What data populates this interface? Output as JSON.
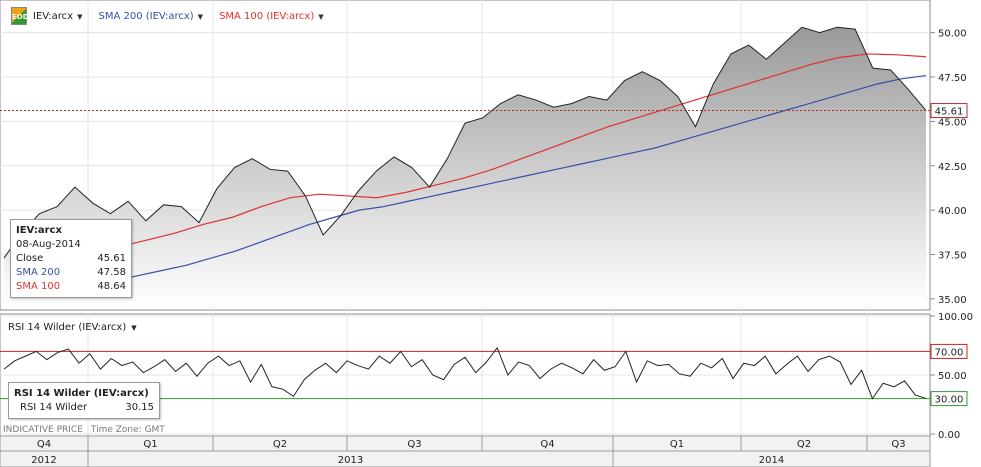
{
  "legend": {
    "symbol": "IEV:arcx",
    "sma200_label": "SMA 200 (IEV:arcx)",
    "sma100_label": "SMA 100 (IEV:arcx)",
    "price_color": "#222222",
    "sma200_color": "#3a4fa8",
    "sma100_color": "#e03030"
  },
  "price_info": {
    "title": "IEV:arcx",
    "date": "08-Aug-2014",
    "rows": [
      {
        "label": "Close",
        "value": "45.61"
      },
      {
        "label": "SMA 200",
        "value": "47.58"
      },
      {
        "label": "SMA 100",
        "value": "48.64"
      }
    ]
  },
  "rsi_panel": {
    "title": "RSI 14 Wilder (IEV:arcx)",
    "info_title": "RSI 14 Wilder (IEV:arcx)",
    "info_label": "RSI 14 Wilder",
    "info_value": "30.15",
    "overbought_color": "#cc2020",
    "oversold_color": "#2f9a2f"
  },
  "footer": {
    "indicative": "INDICATIVE PRICE",
    "timezone": "Time Zone: GMT"
  },
  "chart_data": [
    {
      "type": "area",
      "title": "IEV:arcx",
      "y_ticks": [
        "50.00",
        "47.50",
        "45.00",
        "42.50",
        "40.00",
        "37.50",
        "35.00"
      ],
      "ylim": [
        34.6,
        51.5
      ],
      "last_value_label": "45.61",
      "grid": true,
      "series": [
        {
          "name": "IEV:arcx",
          "values": [
            37.3,
            38.7,
            39.8,
            40.2,
            41.3,
            40.4,
            39.8,
            40.5,
            39.4,
            40.3,
            40.2,
            39.3,
            41.2,
            42.4,
            42.9,
            42.3,
            42.2,
            40.8,
            38.6,
            39.7,
            41.1,
            42.2,
            43.0,
            42.4,
            41.3,
            42.9,
            44.9,
            45.2,
            46.0,
            46.5,
            46.2,
            45.8,
            46.0,
            46.4,
            46.2,
            47.3,
            47.8,
            47.3,
            46.4,
            44.7,
            47.1,
            48.8,
            49.3,
            48.5,
            49.4,
            50.3,
            50.0,
            50.3,
            50.2,
            48.0,
            47.9,
            46.8,
            45.61
          ]
        },
        {
          "name": "SMA 200",
          "values": [
            35.8,
            36.0,
            36.3,
            36.6,
            36.9,
            37.3,
            37.7,
            38.2,
            38.7,
            39.2,
            39.6,
            40.0,
            40.2,
            40.5,
            40.8,
            41.1,
            41.4,
            41.7,
            42.0,
            42.3,
            42.6,
            42.9,
            43.2,
            43.5,
            43.9,
            44.3,
            44.7,
            45.1,
            45.5,
            45.9,
            46.3,
            46.7,
            47.1,
            47.4,
            47.58
          ]
        },
        {
          "name": "SMA 100",
          "values": [
            37.4,
            37.9,
            38.3,
            38.7,
            39.2,
            39.6,
            40.2,
            40.7,
            40.9,
            40.8,
            40.7,
            41.0,
            41.4,
            41.8,
            42.3,
            42.9,
            43.5,
            44.1,
            44.7,
            45.2,
            45.7,
            46.2,
            46.7,
            47.2,
            47.7,
            48.2,
            48.6,
            48.8,
            48.75,
            48.64
          ]
        }
      ]
    },
    {
      "type": "line",
      "title": "RSI 14 Wilder",
      "y_ticks": [
        "100.00",
        "70.00",
        "50.00",
        "30.00",
        "0.00"
      ],
      "ylim": [
        0,
        100
      ],
      "levels": [
        70,
        30
      ],
      "grid": true,
      "series": [
        {
          "name": "RSI 14 Wilder",
          "values": [
            55,
            62,
            66,
            70,
            63,
            69,
            72,
            60,
            68,
            55,
            64,
            58,
            61,
            52,
            57,
            63,
            53,
            60,
            49,
            60,
            66,
            58,
            62,
            44,
            59,
            40,
            38,
            32,
            46,
            54,
            60,
            52,
            62,
            58,
            55,
            66,
            60,
            70,
            57,
            63,
            50,
            46,
            59,
            65,
            52,
            61,
            73,
            50,
            61,
            58,
            47,
            55,
            60,
            56,
            51,
            63,
            54,
            57,
            70,
            44,
            62,
            58,
            59,
            51,
            49,
            60,
            56,
            64,
            47,
            60,
            58,
            66,
            51,
            59,
            66,
            53,
            63,
            66,
            61,
            42,
            54,
            30,
            43,
            40,
            45,
            33,
            30.15
          ]
        }
      ]
    }
  ],
  "x_axis": {
    "quarters": [
      "Q4",
      "Q1",
      "Q2",
      "Q3",
      "Q4",
      "Q1",
      "Q2",
      "Q3"
    ],
    "years": [
      "2012",
      "2013",
      "2014"
    ]
  }
}
